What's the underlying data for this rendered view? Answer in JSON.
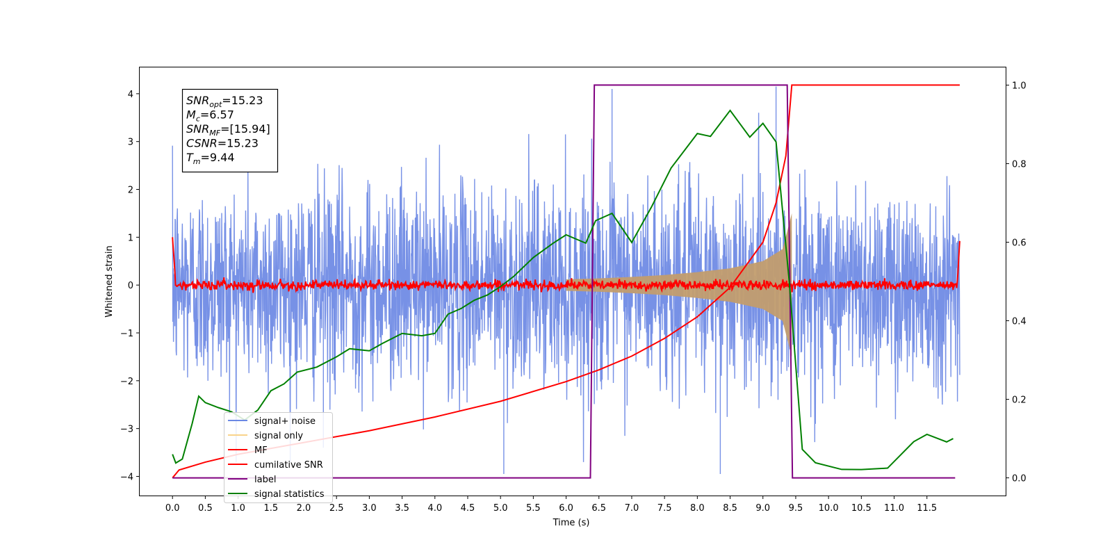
{
  "chart_data": {
    "type": "line",
    "xlabel": "Time (s)",
    "ylabel": "Whitened strain",
    "xlim": [
      -0.5,
      12.7
    ],
    "ylim": [
      -4.4,
      4.55
    ],
    "y2lim": [
      -0.045,
      1.045
    ],
    "x_ticks": [
      "0.0",
      "0.5",
      "1.0",
      "1.5",
      "2.0",
      "2.5",
      "3.0",
      "3.5",
      "4.0",
      "4.5",
      "5.0",
      "5.5",
      "6.0",
      "6.5",
      "7.0",
      "7.5",
      "8.0",
      "8.5",
      "9.0",
      "9.5",
      "10.0",
      "10.5",
      "11.0",
      "11.5"
    ],
    "y_ticks": [
      "4",
      "3",
      "2",
      "1",
      "0",
      "−1",
      "−2",
      "−3",
      "−4"
    ],
    "y2_ticks": [
      "1.0",
      "0.8",
      "0.6",
      "0.4",
      "0.2",
      "0.0"
    ],
    "grid": false,
    "legend_position": "lower-left",
    "legend": [
      {
        "label": "signal+ noise",
        "color": "#6b88e4"
      },
      {
        "label": "signal only",
        "color": "#f9d38a"
      },
      {
        "label": "MF",
        "color": "#ff0000"
      },
      {
        "label": "cumilative SNR",
        "color": "#ff0000"
      },
      {
        "label": "label",
        "color": "#800080"
      },
      {
        "label": "signal statistics",
        "color": "#008000"
      }
    ],
    "info_box": [
      {
        "main": "SNR",
        "sub": "opt",
        "value": "=15.23"
      },
      {
        "main": "M",
        "sub": "c",
        "value": "=6.57"
      },
      {
        "main": "SNR",
        "sub": "MF",
        "value": "=[15.94]"
      },
      {
        "main": "CSNR",
        "sub": "",
        "value": "=15.23"
      },
      {
        "main": "T",
        "sub": "m",
        "value": "=9.44"
      }
    ],
    "signal_noise": {
      "x_range": [
        0.0,
        12.0
      ],
      "approx_std": 1.05,
      "spikes": [
        [
          5.05,
          -3.95
        ],
        [
          6.7,
          4.1
        ],
        [
          9.2,
          4.15
        ],
        [
          8.35,
          -3.95
        ],
        [
          2.3,
          -3.4
        ]
      ]
    },
    "signal_only": {
      "start": 6.0,
      "end": 9.44,
      "envelope": [
        [
          6.0,
          0.12
        ],
        [
          6.5,
          0.14
        ],
        [
          7.0,
          0.17
        ],
        [
          7.5,
          0.21
        ],
        [
          8.0,
          0.27
        ],
        [
          8.5,
          0.35
        ],
        [
          9.0,
          0.5
        ],
        [
          9.3,
          0.75
        ],
        [
          9.44,
          1.5
        ]
      ]
    },
    "mf": {
      "baseline": 0.0,
      "noise_std": 0.05,
      "start_value": 1.0,
      "end_value": 0.92
    },
    "cumulative_snr": [
      [
        0.0,
        0.0
      ],
      [
        0.1,
        0.02
      ],
      [
        0.5,
        0.04
      ],
      [
        1.0,
        0.06
      ],
      [
        2.0,
        0.09
      ],
      [
        3.0,
        0.12
      ],
      [
        4.0,
        0.155
      ],
      [
        5.0,
        0.195
      ],
      [
        6.0,
        0.245
      ],
      [
        6.5,
        0.275
      ],
      [
        7.0,
        0.31
      ],
      [
        7.5,
        0.355
      ],
      [
        8.0,
        0.41
      ],
      [
        8.5,
        0.485
      ],
      [
        9.0,
        0.6
      ],
      [
        9.2,
        0.7
      ],
      [
        9.35,
        0.82
      ],
      [
        9.44,
        1.0
      ],
      [
        12.0,
        1.0
      ]
    ],
    "label": [
      [
        0.0,
        0.0
      ],
      [
        6.37,
        0.0
      ],
      [
        6.43,
        1.0
      ],
      [
        9.37,
        1.0
      ],
      [
        9.45,
        0.0
      ],
      [
        11.93,
        0.0
      ],
      [
        11.93,
        0.0
      ]
    ],
    "signal_statistics": [
      [
        0.0,
        0.06
      ],
      [
        0.05,
        0.035
      ],
      [
        0.15,
        0.05
      ],
      [
        0.3,
        0.14
      ],
      [
        0.4,
        0.21
      ],
      [
        0.5,
        0.19
      ],
      [
        0.7,
        0.18
      ],
      [
        0.9,
        0.165
      ],
      [
        1.1,
        0.15
      ],
      [
        1.3,
        0.17
      ],
      [
        1.5,
        0.225
      ],
      [
        1.7,
        0.24
      ],
      [
        1.9,
        0.27
      ],
      [
        2.2,
        0.28
      ],
      [
        2.5,
        0.31
      ],
      [
        2.7,
        0.33
      ],
      [
        3.0,
        0.325
      ],
      [
        3.2,
        0.345
      ],
      [
        3.5,
        0.37
      ],
      [
        3.8,
        0.36
      ],
      [
        4.0,
        0.365
      ],
      [
        4.2,
        0.42
      ],
      [
        4.4,
        0.43
      ],
      [
        4.6,
        0.45
      ],
      [
        4.8,
        0.465
      ],
      [
        5.0,
        0.49
      ],
      [
        5.2,
        0.51
      ],
      [
        5.5,
        0.56
      ],
      [
        5.8,
        0.6
      ],
      [
        6.0,
        0.62
      ],
      [
        6.3,
        0.6
      ],
      [
        6.45,
        0.655
      ],
      [
        6.7,
        0.67
      ],
      [
        7.0,
        0.6
      ],
      [
        7.3,
        0.69
      ],
      [
        7.6,
        0.79
      ],
      [
        8.0,
        0.875
      ],
      [
        8.2,
        0.87
      ],
      [
        8.5,
        0.935
      ],
      [
        8.8,
        0.87
      ],
      [
        9.0,
        0.905
      ],
      [
        9.2,
        0.855
      ],
      [
        9.4,
        0.5
      ],
      [
        9.6,
        0.07
      ],
      [
        9.8,
        0.035
      ],
      [
        10.2,
        0.022
      ],
      [
        10.5,
        0.018
      ],
      [
        10.9,
        0.025
      ],
      [
        11.3,
        0.09
      ],
      [
        11.5,
        0.11
      ],
      [
        11.8,
        0.095
      ],
      [
        11.9,
        0.1
      ]
    ]
  },
  "colors": {
    "signal_noise": "#6b88e4",
    "signal_only": "#c29d6e",
    "mf": "#ff0000",
    "cumulative_snr": "#ff0000",
    "label": "#800080",
    "signal_statistics": "#008000"
  }
}
